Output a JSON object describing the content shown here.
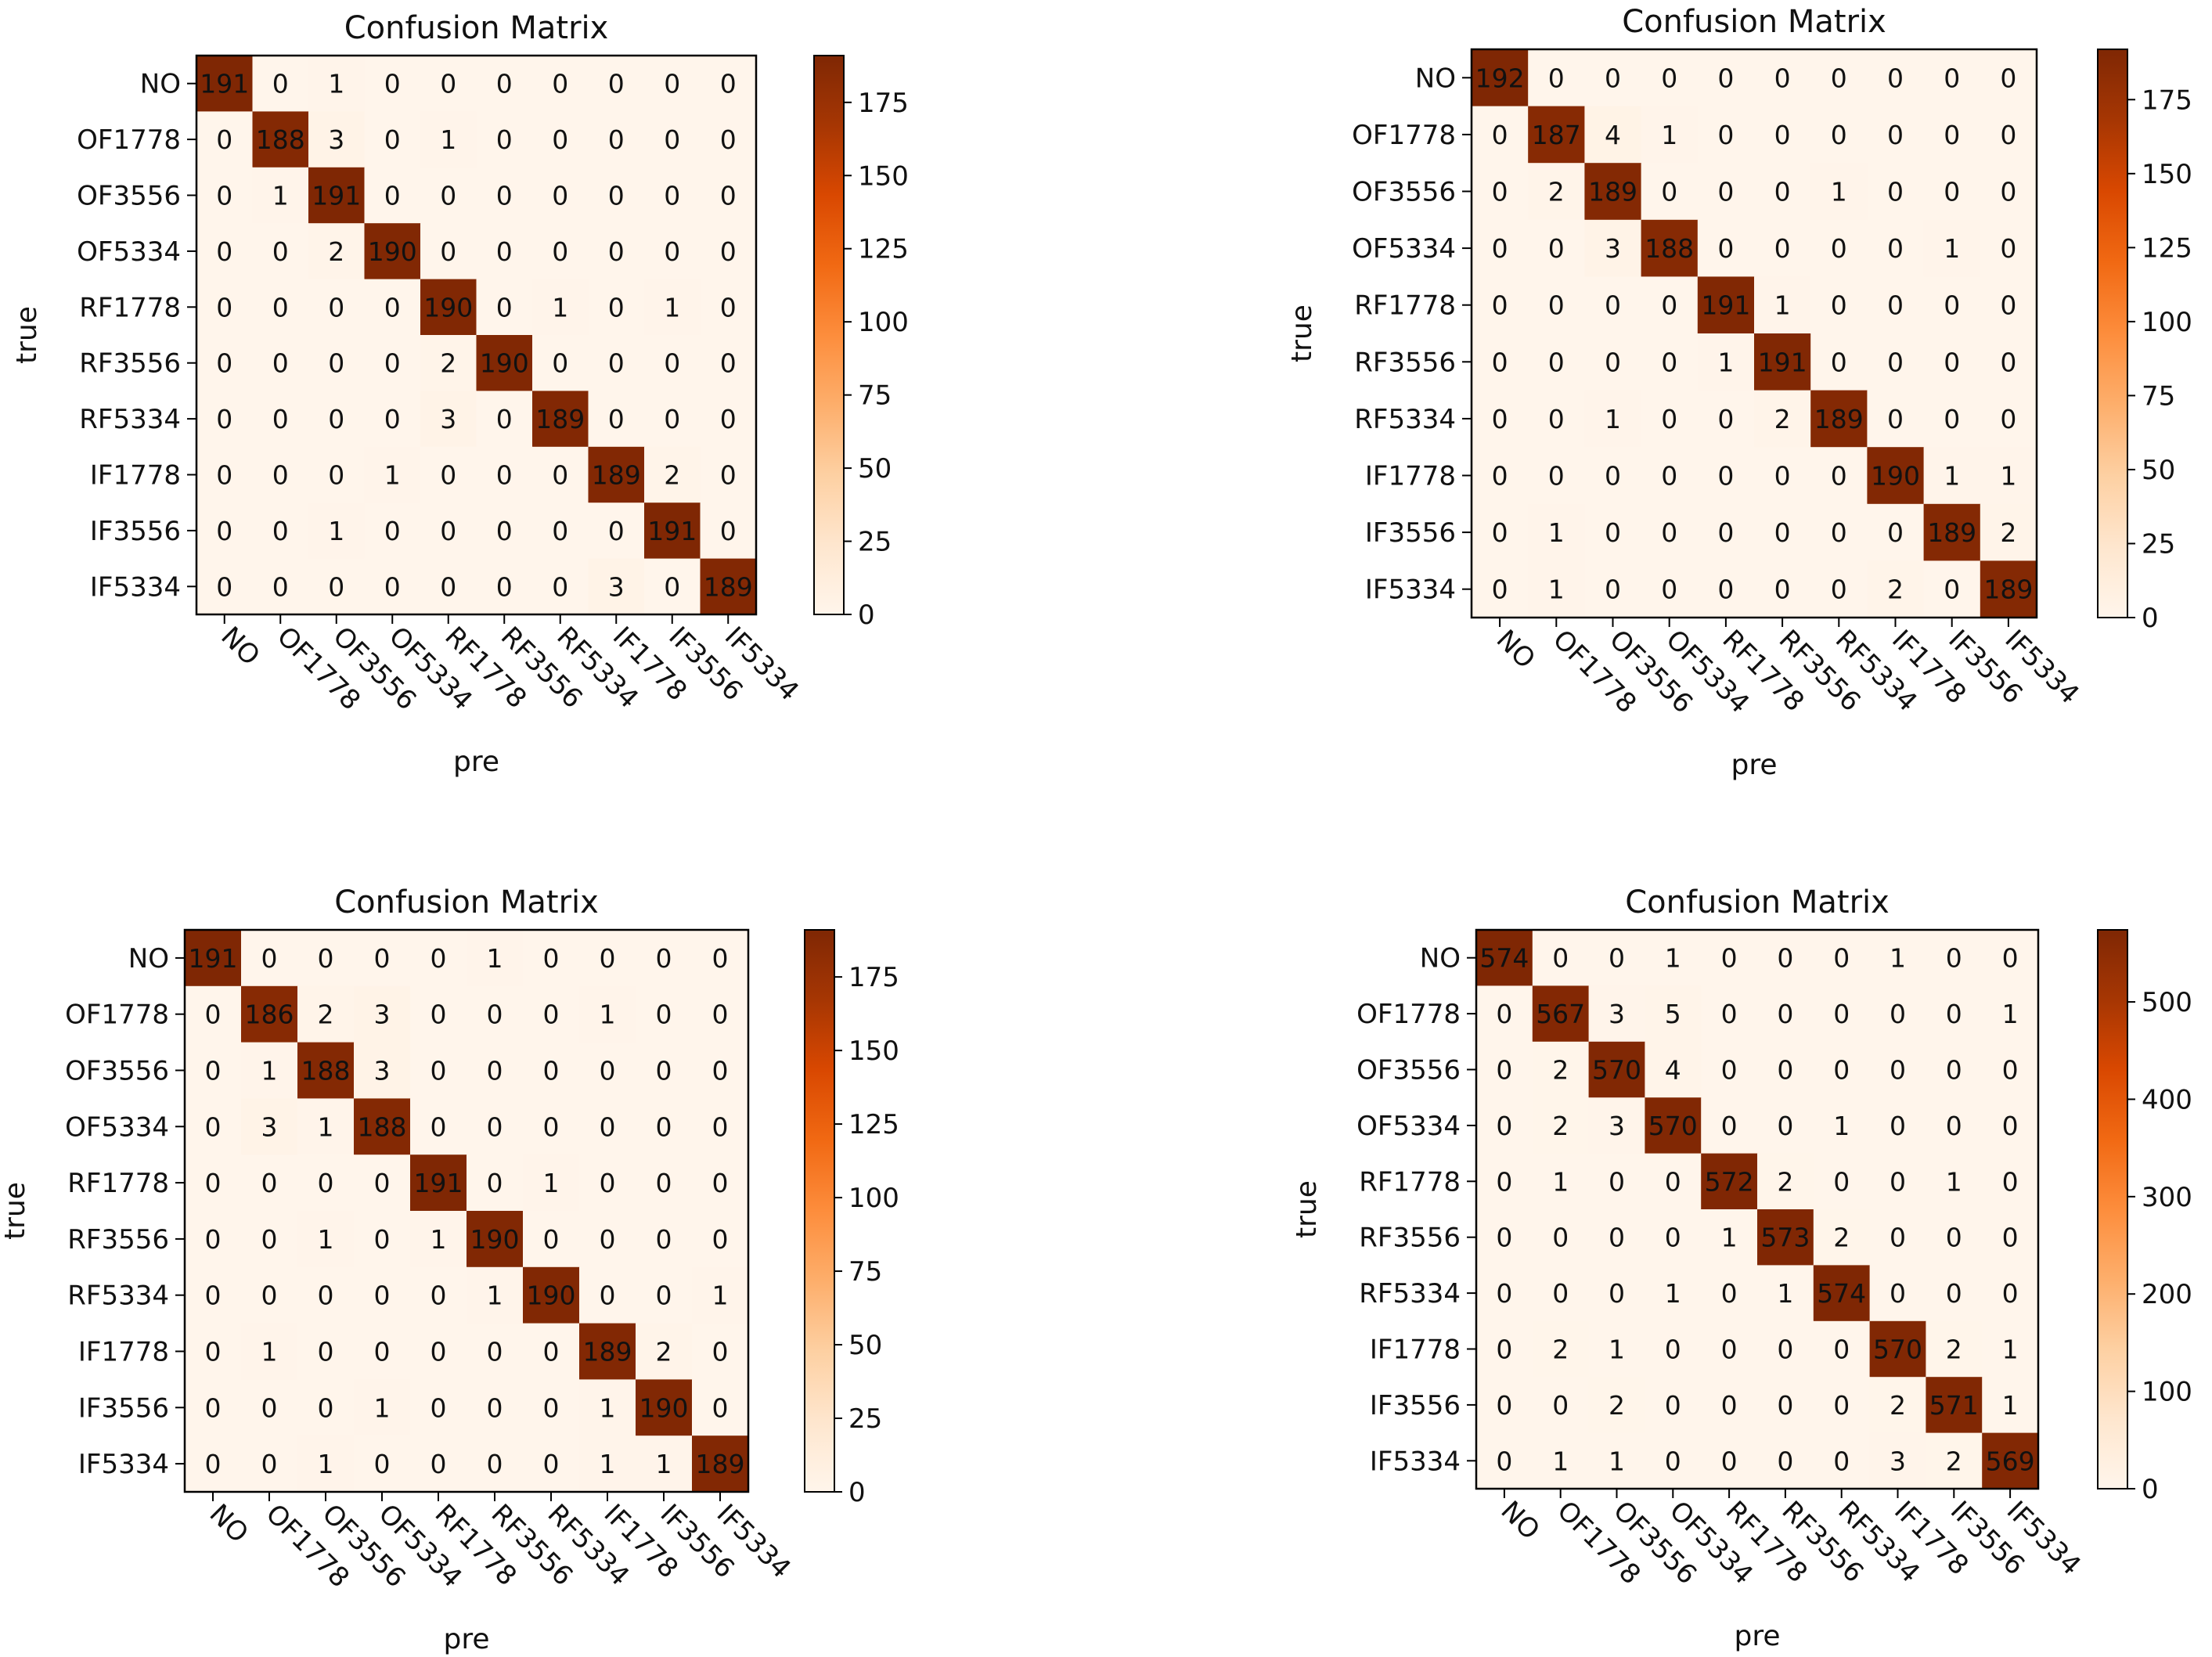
{
  "chart_data": [
    {
      "type": "heatmap",
      "title": "Confusion Matrix",
      "xlabel": "pre",
      "ylabel": "true",
      "labels": [
        "NO",
        "OF1778",
        "OF3556",
        "OF5334",
        "RF1778",
        "RF3556",
        "RF5334",
        "IF1778",
        "IF3556",
        "IF5334"
      ],
      "matrix": [
        [
          191,
          0,
          1,
          0,
          0,
          0,
          0,
          0,
          0,
          0
        ],
        [
          0,
          188,
          3,
          0,
          1,
          0,
          0,
          0,
          0,
          0
        ],
        [
          0,
          1,
          191,
          0,
          0,
          0,
          0,
          0,
          0,
          0
        ],
        [
          0,
          0,
          2,
          190,
          0,
          0,
          0,
          0,
          0,
          0
        ],
        [
          0,
          0,
          0,
          0,
          190,
          0,
          1,
          0,
          1,
          0
        ],
        [
          0,
          0,
          0,
          0,
          2,
          190,
          0,
          0,
          0,
          0
        ],
        [
          0,
          0,
          0,
          0,
          3,
          0,
          189,
          0,
          0,
          0
        ],
        [
          0,
          0,
          0,
          1,
          0,
          0,
          0,
          189,
          2,
          0
        ],
        [
          0,
          0,
          1,
          0,
          0,
          0,
          0,
          0,
          191,
          0
        ],
        [
          0,
          0,
          0,
          0,
          0,
          0,
          0,
          3,
          0,
          189
        ]
      ],
      "colorbar": {
        "max": 191,
        "ticks": [
          0,
          25,
          50,
          75,
          100,
          125,
          150,
          175
        ]
      }
    },
    {
      "type": "heatmap",
      "title": "Confusion Matrix",
      "xlabel": "pre",
      "ylabel": "true",
      "labels": [
        "NO",
        "OF1778",
        "OF3556",
        "OF5334",
        "RF1778",
        "RF3556",
        "RF5334",
        "IF1778",
        "IF3556",
        "IF5334"
      ],
      "matrix": [
        [
          192,
          0,
          0,
          0,
          0,
          0,
          0,
          0,
          0,
          0
        ],
        [
          0,
          187,
          4,
          1,
          0,
          0,
          0,
          0,
          0,
          0
        ],
        [
          0,
          2,
          189,
          0,
          0,
          0,
          1,
          0,
          0,
          0
        ],
        [
          0,
          0,
          3,
          188,
          0,
          0,
          0,
          0,
          1,
          0
        ],
        [
          0,
          0,
          0,
          0,
          191,
          1,
          0,
          0,
          0,
          0
        ],
        [
          0,
          0,
          0,
          0,
          1,
          191,
          0,
          0,
          0,
          0
        ],
        [
          0,
          0,
          1,
          0,
          0,
          2,
          189,
          0,
          0,
          0
        ],
        [
          0,
          0,
          0,
          0,
          0,
          0,
          0,
          190,
          1,
          1
        ],
        [
          0,
          1,
          0,
          0,
          0,
          0,
          0,
          0,
          189,
          2
        ],
        [
          0,
          1,
          0,
          0,
          0,
          0,
          0,
          2,
          0,
          189
        ]
      ],
      "colorbar": {
        "max": 192,
        "ticks": [
          0,
          25,
          50,
          75,
          100,
          125,
          150,
          175
        ]
      }
    },
    {
      "type": "heatmap",
      "title": "Confusion Matrix",
      "xlabel": "pre",
      "ylabel": "true",
      "labels": [
        "NO",
        "OF1778",
        "OF3556",
        "OF5334",
        "RF1778",
        "RF3556",
        "RF5334",
        "IF1778",
        "IF3556",
        "IF5334"
      ],
      "matrix": [
        [
          191,
          0,
          0,
          0,
          0,
          1,
          0,
          0,
          0,
          0
        ],
        [
          0,
          186,
          2,
          3,
          0,
          0,
          0,
          1,
          0,
          0
        ],
        [
          0,
          1,
          188,
          3,
          0,
          0,
          0,
          0,
          0,
          0
        ],
        [
          0,
          3,
          1,
          188,
          0,
          0,
          0,
          0,
          0,
          0
        ],
        [
          0,
          0,
          0,
          0,
          191,
          0,
          1,
          0,
          0,
          0
        ],
        [
          0,
          0,
          1,
          0,
          1,
          190,
          0,
          0,
          0,
          0
        ],
        [
          0,
          0,
          0,
          0,
          0,
          1,
          190,
          0,
          0,
          1
        ],
        [
          0,
          1,
          0,
          0,
          0,
          0,
          0,
          189,
          2,
          0
        ],
        [
          0,
          0,
          0,
          1,
          0,
          0,
          0,
          1,
          190,
          0
        ],
        [
          0,
          0,
          1,
          0,
          0,
          0,
          0,
          1,
          1,
          189
        ]
      ],
      "colorbar": {
        "max": 191,
        "ticks": [
          0,
          25,
          50,
          75,
          100,
          125,
          150,
          175
        ]
      }
    },
    {
      "type": "heatmap",
      "title": "Confusion Matrix",
      "xlabel": "pre",
      "ylabel": "true",
      "labels": [
        "NO",
        "OF1778",
        "OF3556",
        "OF5334",
        "RF1778",
        "RF3556",
        "RF5334",
        "IF1778",
        "IF3556",
        "IF5334"
      ],
      "matrix": [
        [
          574,
          0,
          0,
          1,
          0,
          0,
          0,
          1,
          0,
          0
        ],
        [
          0,
          567,
          3,
          5,
          0,
          0,
          0,
          0,
          0,
          1
        ],
        [
          0,
          2,
          570,
          4,
          0,
          0,
          0,
          0,
          0,
          0
        ],
        [
          0,
          2,
          3,
          570,
          0,
          0,
          1,
          0,
          0,
          0
        ],
        [
          0,
          1,
          0,
          0,
          572,
          2,
          0,
          0,
          1,
          0
        ],
        [
          0,
          0,
          0,
          0,
          1,
          573,
          2,
          0,
          0,
          0
        ],
        [
          0,
          0,
          0,
          1,
          0,
          1,
          574,
          0,
          0,
          0
        ],
        [
          0,
          2,
          1,
          0,
          0,
          0,
          0,
          570,
          2,
          1
        ],
        [
          0,
          0,
          2,
          0,
          0,
          0,
          0,
          2,
          571,
          1
        ],
        [
          0,
          1,
          1,
          0,
          0,
          0,
          0,
          3,
          2,
          569
        ]
      ],
      "colorbar": {
        "max": 574,
        "ticks": [
          0,
          100,
          200,
          300,
          400,
          500
        ]
      }
    }
  ]
}
